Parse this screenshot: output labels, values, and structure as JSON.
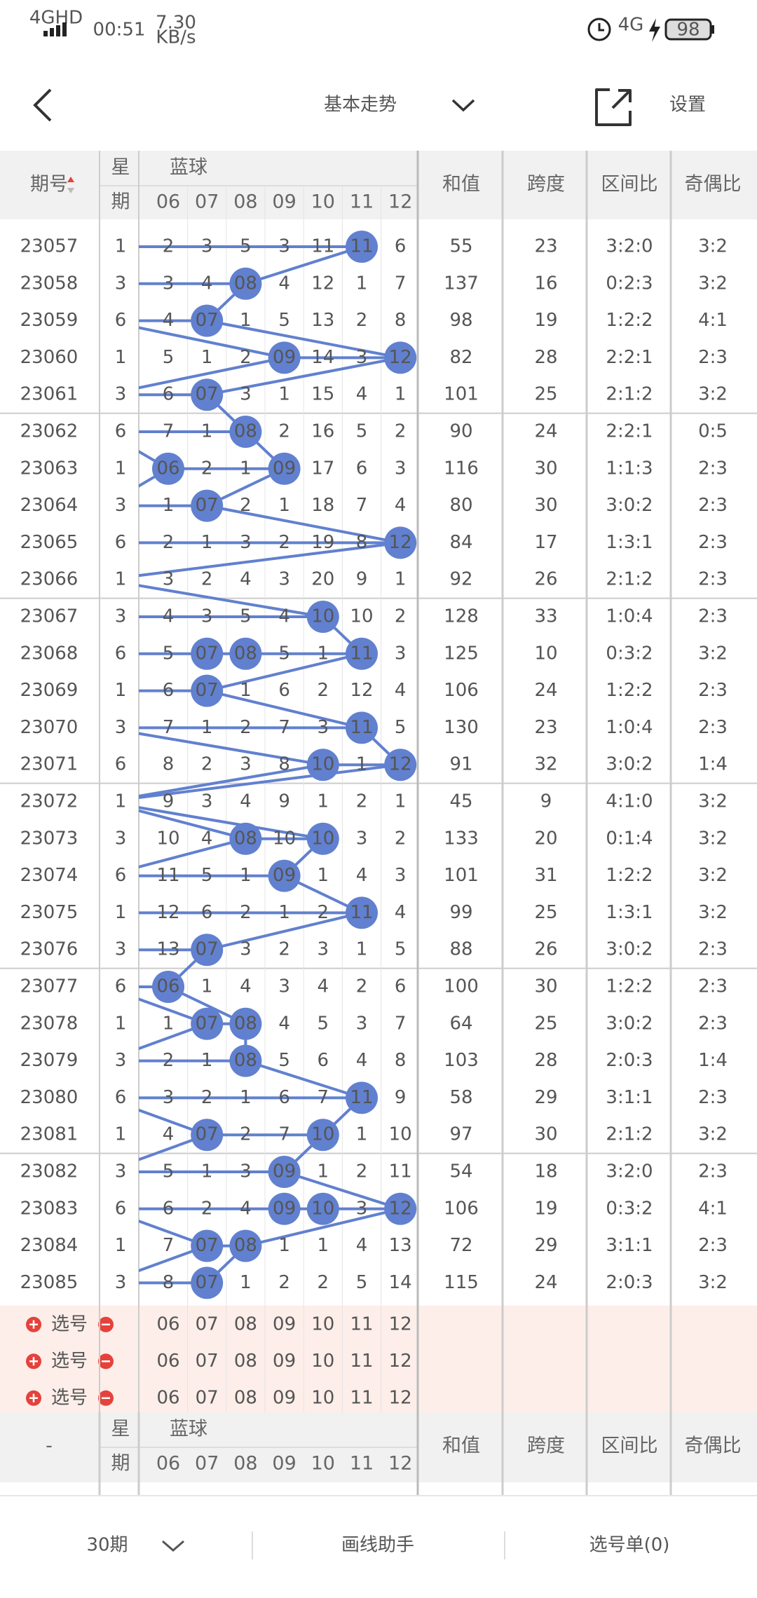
{
  "status": {
    "signal": "4GHD",
    "time": "00:51",
    "speed": "7.30",
    "speed_unit": "KB/s",
    "network": "4G",
    "battery": "98"
  },
  "header": {
    "title": "基本走势",
    "settings": "设置"
  },
  "table": {
    "columns": {
      "period": "期号",
      "weekday_top": "星",
      "weekday_bottom": "期",
      "blue": "蓝球",
      "balls": [
        "06",
        "07",
        "08",
        "09",
        "10",
        "11",
        "12"
      ],
      "sum": "和值",
      "span": "跨度",
      "zone": "区间比",
      "parity": "奇偶比"
    },
    "rows": [
      {
        "period": "23057",
        "weekday": 1,
        "cells": [
          "2",
          "3",
          "5",
          "3",
          "11",
          "11",
          "6"
        ],
        "sum": 55,
        "span": 23,
        "zone": "3:2:0",
        "parity": "3:2"
      },
      {
        "period": "23058",
        "weekday": 3,
        "cells": [
          "3",
          "4",
          "08",
          "4",
          "12",
          "1",
          "7"
        ],
        "sum": 137,
        "span": 16,
        "zone": "0:2:3",
        "parity": "3:2"
      },
      {
        "period": "23059",
        "weekday": 6,
        "cells": [
          "4",
          "07",
          "1",
          "5",
          "13",
          "2",
          "8"
        ],
        "sum": 98,
        "span": 19,
        "zone": "1:2:2",
        "parity": "4:1"
      },
      {
        "period": "23060",
        "weekday": 1,
        "cells": [
          "5",
          "1",
          "2",
          "09",
          "14",
          "3",
          "12"
        ],
        "sum": 82,
        "span": 28,
        "zone": "2:2:1",
        "parity": "2:3"
      },
      {
        "period": "23061",
        "weekday": 3,
        "cells": [
          "6",
          "07",
          "3",
          "1",
          "15",
          "4",
          "1"
        ],
        "sum": 101,
        "span": 25,
        "zone": "2:1:2",
        "parity": "3:2"
      },
      {
        "period": "23062",
        "weekday": 6,
        "cells": [
          "7",
          "1",
          "08",
          "2",
          "16",
          "5",
          "2"
        ],
        "sum": 90,
        "span": 24,
        "zone": "2:2:1",
        "parity": "0:5"
      },
      {
        "period": "23063",
        "weekday": 1,
        "cells": [
          "06",
          "2",
          "1",
          "09",
          "17",
          "6",
          "3"
        ],
        "sum": 116,
        "span": 30,
        "zone": "1:1:3",
        "parity": "2:3"
      },
      {
        "period": "23064",
        "weekday": 3,
        "cells": [
          "1",
          "07",
          "2",
          "1",
          "18",
          "7",
          "4"
        ],
        "sum": 80,
        "span": 30,
        "zone": "3:0:2",
        "parity": "2:3"
      },
      {
        "period": "23065",
        "weekday": 6,
        "cells": [
          "2",
          "1",
          "3",
          "2",
          "19",
          "8",
          "12"
        ],
        "sum": 84,
        "span": 17,
        "zone": "1:3:1",
        "parity": "2:3"
      },
      {
        "period": "23066",
        "weekday": 1,
        "cells": [
          "3",
          "2",
          "4",
          "3",
          "20",
          "9",
          "1"
        ],
        "sum": 92,
        "span": 26,
        "zone": "2:1:2",
        "parity": "2:3"
      },
      {
        "period": "23067",
        "weekday": 3,
        "cells": [
          "4",
          "3",
          "5",
          "4",
          "10",
          "10",
          "2"
        ],
        "sum": 128,
        "span": 33,
        "zone": "1:0:4",
        "parity": "2:3"
      },
      {
        "period": "23068",
        "weekday": 6,
        "cells": [
          "5",
          "07",
          "08",
          "5",
          "1",
          "11",
          "3"
        ],
        "sum": 125,
        "span": 10,
        "zone": "0:3:2",
        "parity": "3:2"
      },
      {
        "period": "23069",
        "weekday": 1,
        "cells": [
          "6",
          "07",
          "1",
          "6",
          "2",
          "12",
          "4"
        ],
        "sum": 106,
        "span": 24,
        "zone": "1:2:2",
        "parity": "2:3"
      },
      {
        "period": "23070",
        "weekday": 3,
        "cells": [
          "7",
          "1",
          "2",
          "7",
          "3",
          "11",
          "5"
        ],
        "sum": 130,
        "span": 23,
        "zone": "1:0:4",
        "parity": "2:3"
      },
      {
        "period": "23071",
        "weekday": 6,
        "cells": [
          "8",
          "2",
          "3",
          "8",
          "10",
          "1",
          "12"
        ],
        "sum": 91,
        "span": 32,
        "zone": "3:0:2",
        "parity": "1:4"
      },
      {
        "period": "23072",
        "weekday": 1,
        "cells": [
          "9",
          "3",
          "4",
          "9",
          "1",
          "2",
          "1"
        ],
        "sum": 45,
        "span": 9,
        "zone": "4:1:0",
        "parity": "3:2"
      },
      {
        "period": "23073",
        "weekday": 3,
        "cells": [
          "10",
          "4",
          "08",
          "10",
          "10",
          "3",
          "2"
        ],
        "sum": 133,
        "span": 20,
        "zone": "0:1:4",
        "parity": "3:2"
      },
      {
        "period": "23074",
        "weekday": 6,
        "cells": [
          "11",
          "5",
          "1",
          "09",
          "1",
          "4",
          "3"
        ],
        "sum": 101,
        "span": 31,
        "zone": "1:2:2",
        "parity": "3:2"
      },
      {
        "period": "23075",
        "weekday": 1,
        "cells": [
          "12",
          "6",
          "2",
          "1",
          "2",
          "11",
          "4"
        ],
        "sum": 99,
        "span": 25,
        "zone": "1:3:1",
        "parity": "3:2"
      },
      {
        "period": "23076",
        "weekday": 3,
        "cells": [
          "13",
          "07",
          "3",
          "2",
          "3",
          "1",
          "5"
        ],
        "sum": 88,
        "span": 26,
        "zone": "3:0:2",
        "parity": "2:3"
      },
      {
        "period": "23077",
        "weekday": 6,
        "cells": [
          "06",
          "1",
          "4",
          "3",
          "4",
          "2",
          "6"
        ],
        "sum": 100,
        "span": 30,
        "zone": "1:2:2",
        "parity": "2:3"
      },
      {
        "period": "23078",
        "weekday": 1,
        "cells": [
          "1",
          "07",
          "08",
          "4",
          "5",
          "3",
          "7"
        ],
        "sum": 64,
        "span": 25,
        "zone": "3:0:2",
        "parity": "2:3"
      },
      {
        "period": "23079",
        "weekday": 3,
        "cells": [
          "2",
          "1",
          "08",
          "5",
          "6",
          "4",
          "8"
        ],
        "sum": 103,
        "span": 28,
        "zone": "2:0:3",
        "parity": "1:4"
      },
      {
        "period": "23080",
        "weekday": 6,
        "cells": [
          "3",
          "2",
          "1",
          "6",
          "7",
          "11",
          "9"
        ],
        "sum": 58,
        "span": 29,
        "zone": "3:1:1",
        "parity": "2:3"
      },
      {
        "period": "23081",
        "weekday": 1,
        "cells": [
          "4",
          "07",
          "2",
          "7",
          "10",
          "1",
          "10"
        ],
        "sum": 97,
        "span": 30,
        "zone": "2:1:2",
        "parity": "3:2"
      },
      {
        "period": "23082",
        "weekday": 3,
        "cells": [
          "5",
          "1",
          "3",
          "09",
          "1",
          "2",
          "11"
        ],
        "sum": 54,
        "span": 18,
        "zone": "3:2:0",
        "parity": "2:3"
      },
      {
        "period": "23083",
        "weekday": 6,
        "cells": [
          "6",
          "2",
          "4",
          "09",
          "10",
          "3",
          "12"
        ],
        "sum": 106,
        "span": 19,
        "zone": "0:3:2",
        "parity": "4:1"
      },
      {
        "period": "23084",
        "weekday": 1,
        "cells": [
          "7",
          "07",
          "08",
          "1",
          "1",
          "4",
          "13"
        ],
        "sum": 72,
        "span": 29,
        "zone": "3:1:1",
        "parity": "2:3"
      },
      {
        "period": "23085",
        "weekday": 3,
        "cells": [
          "8",
          "07",
          "1",
          "2",
          "2",
          "5",
          "14"
        ],
        "sum": 115,
        "span": 24,
        "zone": "2:0:3",
        "parity": "3:2"
      }
    ]
  },
  "select_rows": [
    {
      "label": "选号",
      "balls": [
        "06",
        "07",
        "08",
        "09",
        "10",
        "11",
        "12"
      ]
    },
    {
      "label": "选号",
      "balls": [
        "06",
        "07",
        "08",
        "09",
        "10",
        "11",
        "12"
      ]
    },
    {
      "label": "选号",
      "balls": [
        "06",
        "07",
        "08",
        "09",
        "10",
        "11",
        "12"
      ]
    }
  ],
  "footer_header": {
    "period": "-",
    "weekday_top": "星",
    "weekday_bottom": "期",
    "blue": "蓝球",
    "balls": [
      "06",
      "07",
      "08",
      "09",
      "10",
      "11",
      "12"
    ],
    "sum": "和值",
    "span": "跨度",
    "zone": "区间比",
    "parity": "奇偶比"
  },
  "bottom_bar": {
    "periods": "30期",
    "draw": "画线助手",
    "list": "选号单(0)"
  }
}
